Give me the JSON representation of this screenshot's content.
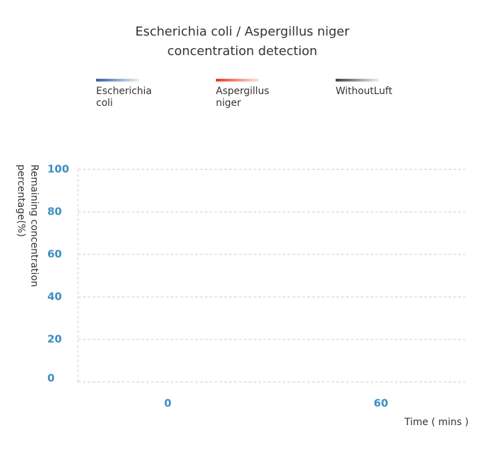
{
  "chart_data": {
    "type": "line",
    "title": "Escherichia coli / Aspergillus niger concentration detection",
    "xlabel": "Time ( mins )",
    "ylabel": "Remaining concentration percentage(%)",
    "categories": [
      "0",
      "60"
    ],
    "series": [
      {
        "name": "Escherichia coli",
        "color": [
          "#3a5ca8",
          "#e3f5f4"
        ],
        "values": [
          null,
          null
        ]
      },
      {
        "name": "Aspergillus niger",
        "color": [
          "#e8391f",
          "#fbe6df"
        ],
        "values": [
          null,
          null
        ]
      },
      {
        "name": "WithoutLuft",
        "color": [
          "#444444",
          "#eeeeee"
        ],
        "values": [
          null,
          null
        ]
      }
    ],
    "ylim": [
      0,
      100
    ],
    "yticks": [
      0,
      20,
      40,
      60,
      80,
      100
    ],
    "grid": true,
    "legend": "top"
  }
}
